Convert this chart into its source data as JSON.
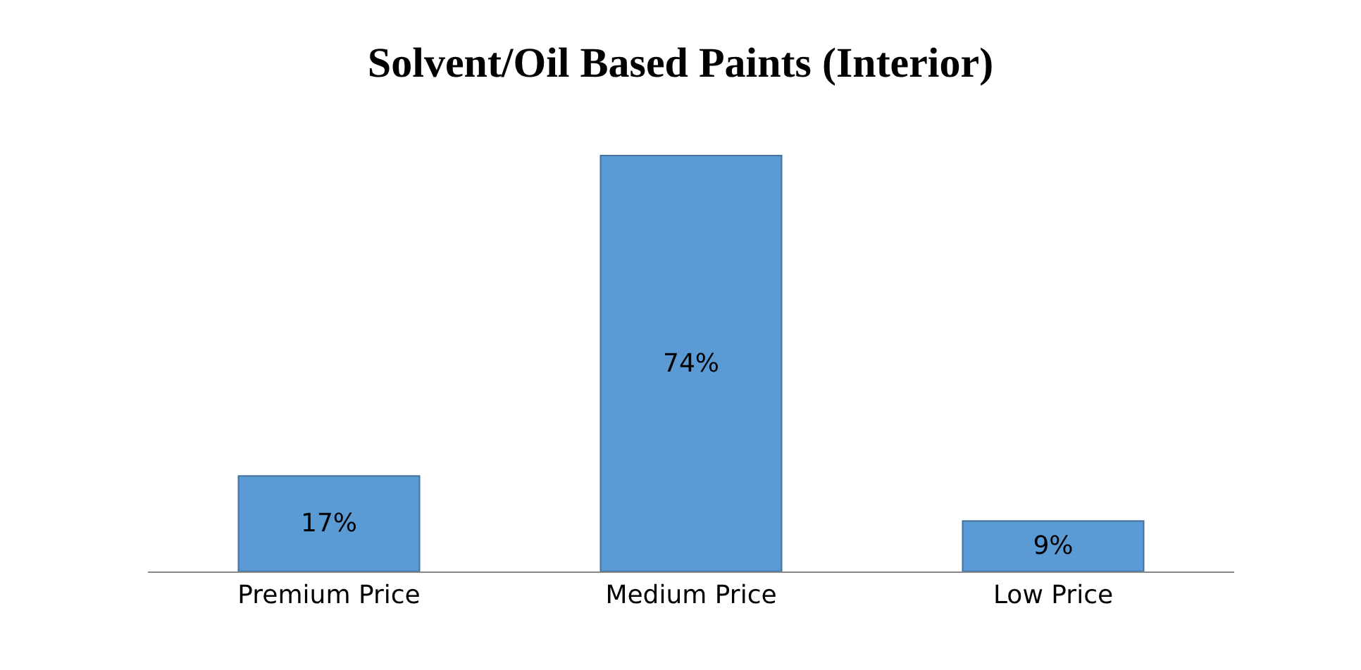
{
  "chart_data": {
    "type": "bar",
    "title": "Solvent/Oil Based Paints (Interior)",
    "categories": [
      "Premium Price",
      "Medium Price",
      "Low Price"
    ],
    "values": [
      17,
      74,
      9
    ],
    "value_labels": [
      "17%",
      "74%",
      "9%"
    ],
    "color": "#5b9bd5"
  }
}
